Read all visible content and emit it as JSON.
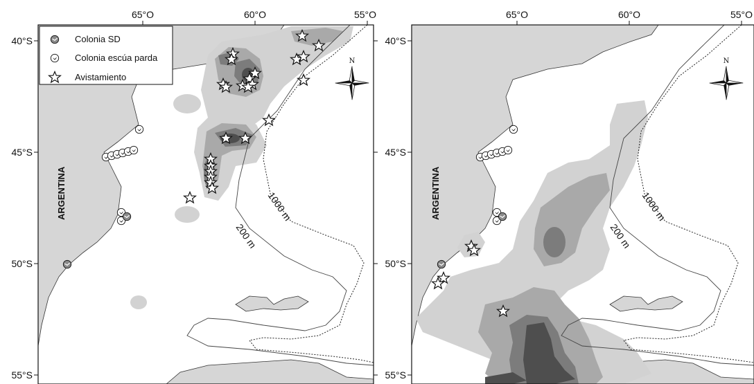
{
  "panels": [
    {
      "lon_labels": [
        "65°O",
        "60°O",
        "55°O"
      ],
      "lat_labels": [
        "40°S",
        "45°S",
        "50°S",
        "55°S"
      ],
      "country": "ARGENTINA",
      "isobath_1000": "1000 m",
      "isobath_200": "200 m",
      "north": "N"
    },
    {
      "lon_labels": [
        "65°O",
        "60°O",
        "55°O"
      ],
      "lat_labels": [
        "40°S",
        "45°S",
        "50°S",
        "55°S"
      ],
      "country": "ARGENTINA",
      "isobath_1000": "1000 m",
      "isobath_200": "200 m",
      "north": "N"
    }
  ],
  "legend": {
    "items": [
      {
        "label": "Colonia SD",
        "icon": "colony-sd-icon"
      },
      {
        "label": "Colonia escúa parda",
        "icon": "colony-skua-icon"
      },
      {
        "label": "Avistamiento",
        "icon": "star-icon"
      }
    ]
  },
  "colors": {
    "land": "#d6d6d6",
    "sea": "#ffffff",
    "density_low": "#d2d2d2",
    "density_mid": "#a9a9a9",
    "density_high": "#7c7c7c",
    "density_top": "#4e4e4e"
  }
}
